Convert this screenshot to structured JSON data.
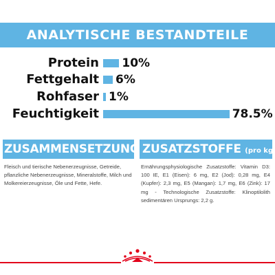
{
  "header": {
    "title": "ANALYTISCHE BESTANDTEILE"
  },
  "analysis": [
    {
      "label": "Protein",
      "value": "10%",
      "percent": 10
    },
    {
      "label": "Fettgehalt",
      "value": "6%",
      "percent": 6
    },
    {
      "label": "Rohfaser",
      "value": "1%",
      "percent": 1
    },
    {
      "label": "Feuchtigkeit",
      "value": "78.5%",
      "percent": 78.5
    }
  ],
  "composition": {
    "title": "ZUSAMMENSETZUNG",
    "text": "Fleisch und tierische Nebenerzeugnisse, Getreide, pflanzliche Nebenerzeugnisse, Mineralstoffe, Milch und Molkereierzeugnisse, Öle und Fette, Hefe."
  },
  "additives": {
    "title": "ZUSATZSTOFFE",
    "subtitle": "(pro kg)",
    "text": "Ernährungsphysiologische Zusatzstoffe: Vitamin D3: 100 IE, E1 (Eisen): 6 mg, E2 (Jod): 0,28 mg, E4 (Kupfer): 2,3 mg, E5 (Mangan): 1,7 mg, E6 (Zink): 17 mg - Technologische Zusatzstoffe: Klinoptilolith sedimentären Ursprungs: 2,2 g."
  },
  "colors": {
    "accent": "#5fb4e3",
    "brand_red": "#e2001a",
    "text": "#111111"
  },
  "logo": {
    "icon": "royal-canin-crown-logo"
  }
}
